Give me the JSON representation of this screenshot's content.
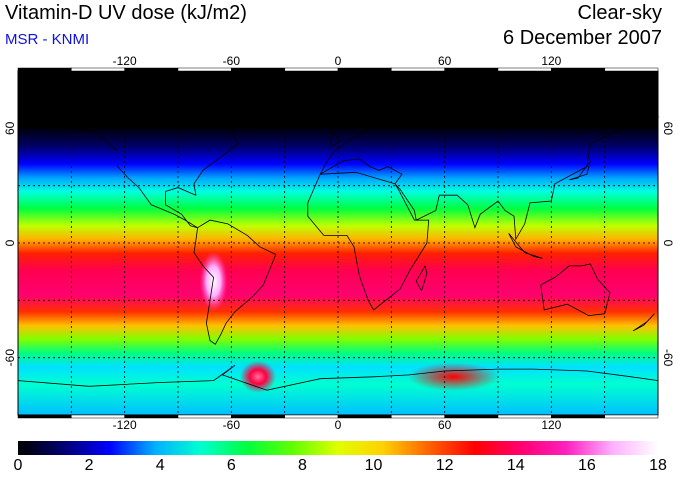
{
  "header": {
    "title": "Vitamin-D UV dose (kJ/m2)",
    "source": "MSR - KNMI",
    "condition": "Clear-sky",
    "date": "6 December 2007"
  },
  "map": {
    "projection": "equirectangular",
    "lon_ticks": [
      "-120",
      "-60",
      "0",
      "60",
      "120"
    ],
    "lat_ticks": [
      "60",
      "0",
      "-60"
    ],
    "grid_lon": [
      -150,
      -120,
      -90,
      -60,
      -30,
      0,
      30,
      60,
      90,
      120,
      150
    ],
    "grid_lat": [
      60,
      30,
      0,
      -30,
      -60
    ],
    "hotspots": [
      {
        "label": "",
        "lon": -45,
        "lat": -70,
        "value": 14
      },
      {
        "label": "",
        "lon": 65,
        "lat": -70,
        "value": 13
      },
      {
        "label": "",
        "lon": -70,
        "lat": -20,
        "value": 17
      }
    ]
  },
  "colorbar": {
    "ticks": [
      "0",
      "2",
      "4",
      "6",
      "8",
      "10",
      "12",
      "14",
      "16",
      "18"
    ],
    "min": 0,
    "max": 18,
    "colors": [
      "#000000",
      "#000070",
      "#0000ff",
      "#00b0ff",
      "#00ffd0",
      "#00ff40",
      "#60ff00",
      "#e0ff00",
      "#ffd000",
      "#ff6000",
      "#ff0000",
      "#ff0070",
      "#ff20c0",
      "#ffb0ff",
      "#ffffff"
    ]
  }
}
